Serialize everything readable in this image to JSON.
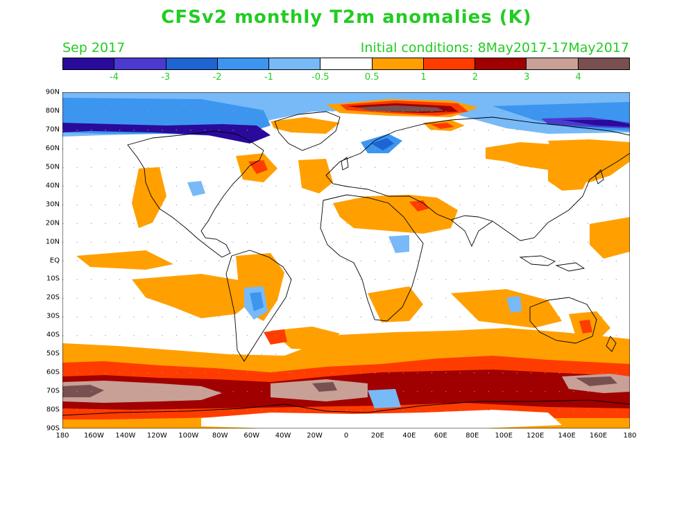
{
  "title": "CFSv2 monthly T2m anomalies (K)",
  "valid_month": "Sep 2017",
  "initial_conditions": "Initial conditions: 8May2017-17May2017",
  "colorbar": {
    "colors": [
      "#2a0a9a",
      "#4a3ad0",
      "#1e64d2",
      "#3c96f0",
      "#78b9f8",
      "#ffffff",
      "#ffa000",
      "#ff3c00",
      "#a00000",
      "#c8a096",
      "#785050"
    ],
    "tick_labels": [
      "-4",
      "-3",
      "-2",
      "-1",
      "-0.5",
      "0.5",
      "1",
      "2",
      "3",
      "4"
    ]
  },
  "axes": {
    "lat_labels": [
      "90N",
      "80N",
      "70N",
      "60N",
      "50N",
      "40N",
      "30N",
      "20N",
      "10N",
      "EQ",
      "10S",
      "20S",
      "30S",
      "40S",
      "50S",
      "60S",
      "70S",
      "80S",
      "90S"
    ],
    "lon_labels": [
      "180",
      "160W",
      "140W",
      "120W",
      "100W",
      "80W",
      "60W",
      "40W",
      "20W",
      "0",
      "20E",
      "40E",
      "60E",
      "80E",
      "100E",
      "120E",
      "140E",
      "160E",
      "180"
    ]
  }
}
